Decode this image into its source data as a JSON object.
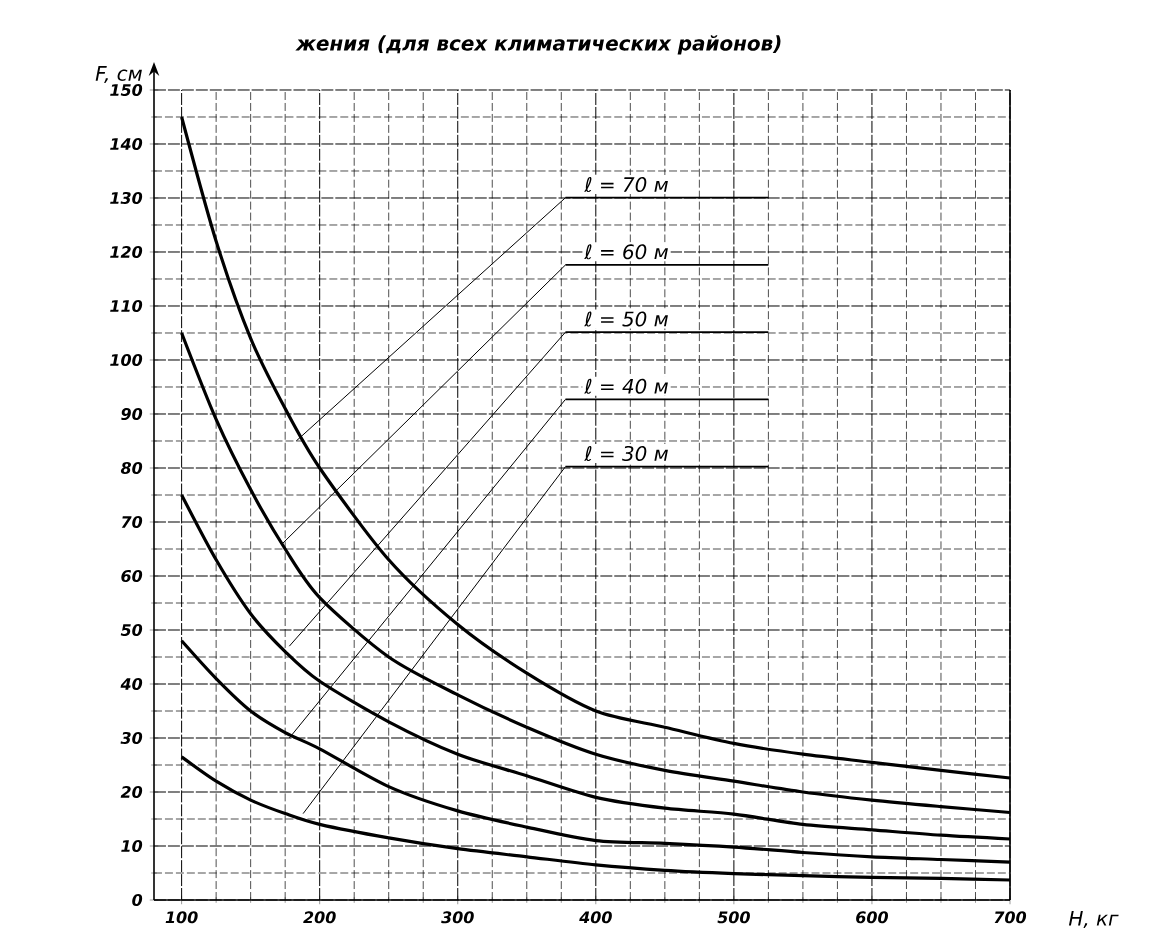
{
  "chart_data": {
    "type": "line",
    "title": "жения (для всех климатических районов)",
    "xlabel": "H, кг",
    "ylabel": "F, см",
    "x": [
      100,
      125,
      150,
      175,
      200,
      250,
      300,
      350,
      400,
      450,
      500,
      550,
      600,
      650,
      700
    ],
    "series": [
      {
        "color": "#000000",
        "values": [
          145,
          122,
          104,
          91,
          80,
          63,
          51,
          42,
          35,
          32,
          29,
          27,
          25.5,
          24,
          22.6
        ]
      },
      {
        "color": "#000000",
        "values": [
          105,
          89,
          76,
          65,
          56,
          45,
          38,
          32,
          27,
          24,
          22,
          20,
          18.5,
          17.3,
          16.2
        ]
      },
      {
        "color": "#000000",
        "values": [
          75,
          63,
          53,
          46,
          40.5,
          33,
          27,
          23,
          19,
          17,
          15.9,
          14,
          13,
          12,
          11.3
        ]
      },
      {
        "color": "#000000",
        "values": [
          48,
          41,
          35,
          31,
          28,
          21,
          16.5,
          13.5,
          11,
          10.5,
          9.8,
          8.8,
          8,
          7.5,
          7
        ]
      },
      {
        "color": "#000000",
        "values": [
          26.5,
          22,
          18.5,
          16,
          14,
          11.5,
          9.5,
          8,
          6.5,
          5.5,
          4.9,
          4.5,
          4.2,
          4,
          3.7
        ]
      }
    ],
    "annotations": [
      {
        "text": "ℓ = 70 м",
        "x": 183,
        "y": 85
      },
      {
        "text": "ℓ = 60 м",
        "x": 173,
        "y": 66
      },
      {
        "text": "ℓ = 50 м",
        "x": 178,
        "y": 47
      },
      {
        "text": "ℓ = 40 м",
        "x": 178,
        "y": 30
      },
      {
        "text": "ℓ = 30 м",
        "x": 188,
        "y": 16
      }
    ],
    "xlim": [
      80,
      700
    ],
    "ylim": [
      0,
      150
    ],
    "xticks": [
      100,
      200,
      300,
      400,
      500,
      600,
      700
    ],
    "yticks": [
      0,
      10,
      20,
      30,
      40,
      50,
      60,
      70,
      80,
      90,
      100,
      110,
      120,
      130,
      140,
      150
    ],
    "grid": true,
    "marker": "none",
    "line_style": "solid"
  }
}
